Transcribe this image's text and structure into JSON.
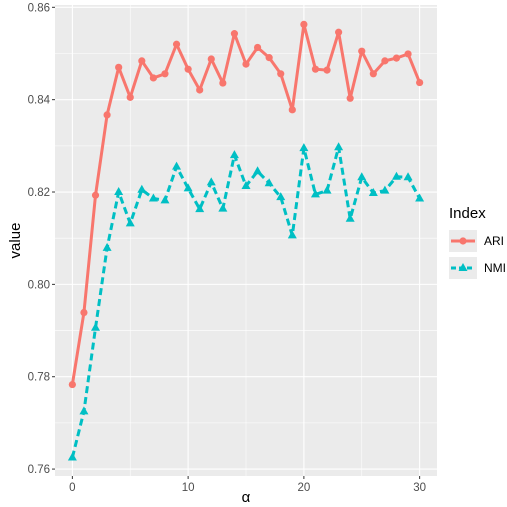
{
  "chart_data": {
    "type": "line",
    "xlabel": "α",
    "ylabel": "value",
    "xlim": [
      -1.5,
      31.5
    ],
    "ylim": [
      0.7585,
      0.8605
    ],
    "x_ticks": [
      0,
      10,
      20,
      30
    ],
    "x_tick_labels": [
      "0",
      "10",
      "20",
      "30"
    ],
    "y_ticks": [
      0.76,
      0.78,
      0.8,
      0.82,
      0.84,
      0.86
    ],
    "y_tick_labels": [
      "0.76",
      "0.78",
      "0.80",
      "0.82",
      "0.84",
      "0.86"
    ],
    "grid": true,
    "legend": {
      "title": "Index",
      "position": "right"
    },
    "x": [
      0,
      1,
      2,
      3,
      4,
      5,
      6,
      7,
      8,
      9,
      10,
      11,
      12,
      13,
      14,
      15,
      16,
      17,
      18,
      19,
      20,
      21,
      22,
      23,
      24,
      25,
      26,
      27,
      28,
      29,
      30
    ],
    "series": [
      {
        "name": "ARI",
        "color": "#F8766D",
        "line_style": "solid",
        "marker": "circle",
        "values": [
          0.7783,
          0.7939,
          0.8193,
          0.8367,
          0.847,
          0.8405,
          0.8484,
          0.8447,
          0.8456,
          0.852,
          0.8466,
          0.8421,
          0.8488,
          0.8436,
          0.8543,
          0.8477,
          0.8513,
          0.8491,
          0.8456,
          0.8378,
          0.8563,
          0.8466,
          0.8464,
          0.8546,
          0.8403,
          0.8505,
          0.8456,
          0.8484,
          0.849,
          0.8499,
          0.8437
        ]
      },
      {
        "name": "NMI",
        "color": "#00BFC4",
        "line_style": "dashed",
        "marker": "triangle",
        "values": [
          0.7625,
          0.7725,
          0.7906,
          0.8079,
          0.82,
          0.8132,
          0.8205,
          0.8186,
          0.8182,
          0.8255,
          0.8208,
          0.8163,
          0.8221,
          0.8164,
          0.828,
          0.8213,
          0.8245,
          0.8219,
          0.8189,
          0.8106,
          0.8295,
          0.8195,
          0.8203,
          0.8297,
          0.8142,
          0.8232,
          0.8198,
          0.8203,
          0.8233,
          0.8232,
          0.8186
        ]
      }
    ]
  }
}
